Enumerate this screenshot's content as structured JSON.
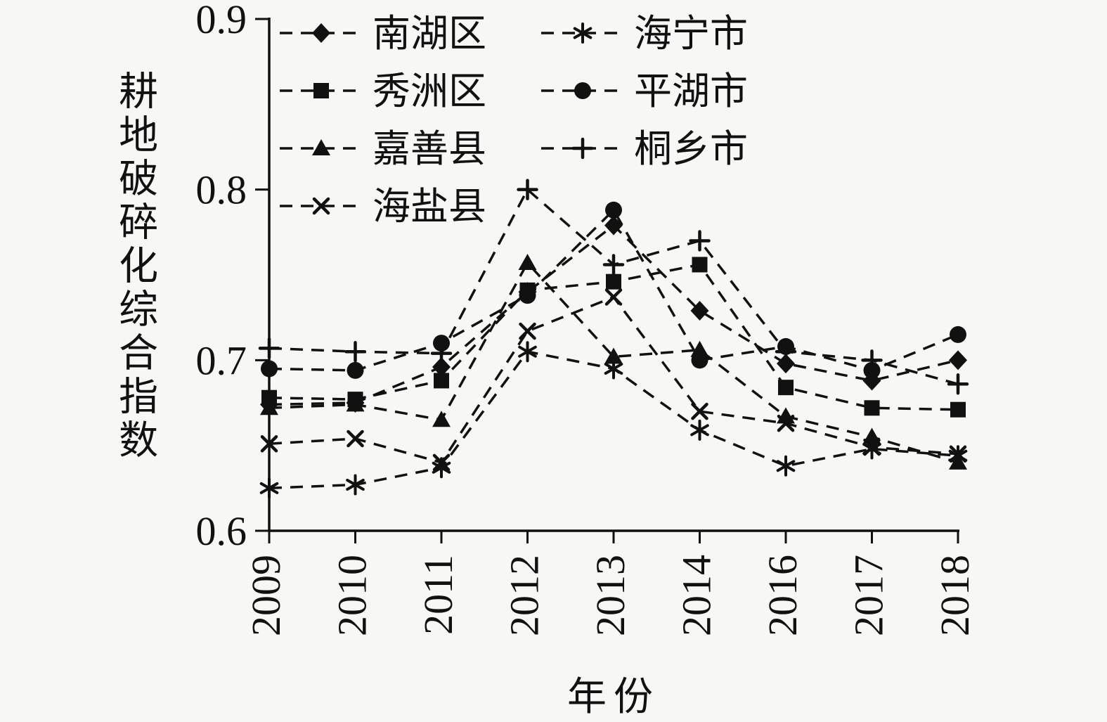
{
  "figure": {
    "background": "#f7f7f5",
    "ink": "#111111"
  },
  "chart_data": {
    "type": "line",
    "title": "",
    "xlabel": "年份",
    "ylabel": "耕地破碎化综合指数",
    "categories": [
      "2009",
      "2010",
      "2011",
      "2012",
      "2013",
      "2014",
      "2016",
      "2017",
      "2018"
    ],
    "ylim": [
      0.6,
      0.9
    ],
    "yticks": [
      0.6,
      0.7,
      0.8,
      0.9
    ],
    "grid": false,
    "line_style": "dashed",
    "legend_position": "inside-top-left",
    "legend_columns": [
      [
        0,
        1,
        2,
        3
      ],
      [
        4,
        5,
        6
      ]
    ],
    "series": [
      {
        "name": "南湖区",
        "marker": "diamond",
        "values": [
          0.674,
          0.675,
          0.696,
          0.74,
          0.779,
          0.729,
          0.698,
          0.688,
          0.7
        ]
      },
      {
        "name": "秀洲区",
        "marker": "square",
        "values": [
          0.678,
          0.677,
          0.688,
          0.741,
          0.746,
          0.756,
          0.684,
          0.672,
          0.671
        ]
      },
      {
        "name": "嘉善县",
        "marker": "triangle",
        "values": [
          0.672,
          0.674,
          0.665,
          0.757,
          0.702,
          0.706,
          0.667,
          0.655,
          0.64
        ]
      },
      {
        "name": "海盐县",
        "marker": "x",
        "values": [
          0.651,
          0.654,
          0.64,
          0.717,
          0.737,
          0.67,
          0.663,
          0.649,
          0.645
        ]
      },
      {
        "name": "海宁市",
        "marker": "asterisk",
        "values": [
          0.625,
          0.627,
          0.637,
          0.705,
          0.695,
          0.659,
          0.638,
          0.648,
          0.644
        ]
      },
      {
        "name": "平湖市",
        "marker": "circle",
        "values": [
          0.695,
          0.694,
          0.71,
          0.738,
          0.788,
          0.7,
          0.708,
          0.694,
          0.715
        ]
      },
      {
        "name": "桐乡市",
        "marker": "plus",
        "values": [
          0.707,
          0.705,
          0.704,
          0.8,
          0.756,
          0.77,
          0.705,
          0.7,
          0.686
        ]
      }
    ]
  }
}
